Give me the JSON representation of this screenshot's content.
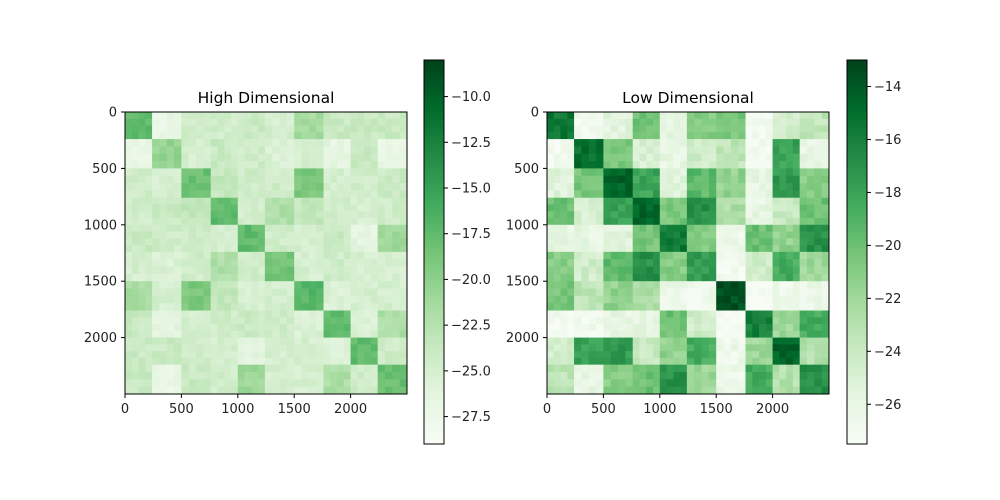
{
  "chart_data": [
    {
      "type": "heatmap",
      "title": "High Dimensional",
      "xlabel": "",
      "ylabel": "",
      "n": 2500,
      "x_ticks": [
        0,
        500,
        1000,
        1500,
        2000
      ],
      "y_ticks": [
        0,
        500,
        1000,
        1500,
        2000
      ],
      "cmap": "Greens",
      "colorbar": {
        "range": [
          -29.0,
          -8.0
        ],
        "ticks": [
          -10.0,
          -12.5,
          -15.0,
          -17.5,
          -20.0,
          -22.5,
          -25.0,
          -27.5
        ],
        "tick_labels": [
          "−10.0",
          "−12.5",
          "−15.0",
          "−17.5",
          "−20.0",
          "−22.5",
          "−25.0",
          "−27.5"
        ]
      },
      "block_boundaries": [
        0,
        240,
        500,
        760,
        1000,
        1240,
        1500,
        1760,
        2000,
        2240,
        2500
      ],
      "block_values": [
        [
          -17.5,
          -27.0,
          -24.5,
          -24.5,
          -24.0,
          -25.0,
          -21.5,
          -24.0,
          -24.0,
          -24.0
        ],
        [
          -27.0,
          -20.5,
          -25.0,
          -24.0,
          -24.5,
          -25.5,
          -25.0,
          -26.5,
          -24.0,
          -27.0
        ],
        [
          -24.5,
          -25.0,
          -18.0,
          -23.5,
          -24.5,
          -24.5,
          -19.0,
          -25.0,
          -24.5,
          -24.0
        ],
        [
          -24.5,
          -24.0,
          -23.5,
          -17.5,
          -25.0,
          -22.0,
          -23.5,
          -24.5,
          -25.0,
          -24.5
        ],
        [
          -24.0,
          -24.5,
          -24.5,
          -25.0,
          -17.5,
          -24.5,
          -25.0,
          -24.0,
          -26.5,
          -21.0
        ],
        [
          -25.0,
          -25.5,
          -24.5,
          -22.0,
          -24.5,
          -18.5,
          -25.0,
          -24.5,
          -25.0,
          -25.0
        ],
        [
          -21.5,
          -25.0,
          -19.0,
          -23.5,
          -25.0,
          -25.0,
          -17.0,
          -25.5,
          -25.0,
          -25.0
        ],
        [
          -24.0,
          -26.5,
          -25.0,
          -24.5,
          -24.0,
          -24.5,
          -25.5,
          -17.5,
          -25.5,
          -22.0
        ],
        [
          -24.0,
          -24.0,
          -24.5,
          -25.0,
          -26.5,
          -25.0,
          -25.0,
          -25.5,
          -17.5,
          -24.5
        ],
        [
          -24.0,
          -27.0,
          -24.0,
          -24.5,
          -21.0,
          -25.0,
          -25.0,
          -22.0,
          -24.5,
          -18.0
        ]
      ]
    },
    {
      "type": "heatmap",
      "title": "Low Dimensional",
      "xlabel": "",
      "ylabel": "",
      "n": 2500,
      "x_ticks": [
        0,
        500,
        1000,
        1500,
        2000
      ],
      "y_ticks": [
        0,
        500,
        1000,
        1500,
        2000
      ],
      "cmap": "Greens",
      "colorbar": {
        "range": [
          -27.5,
          -13.0
        ],
        "ticks": [
          -14,
          -16,
          -18,
          -20,
          -22,
          -24,
          -26
        ],
        "tick_labels": [
          "−14",
          "−16",
          "−18",
          "−20",
          "−22",
          "−24",
          "−26"
        ]
      },
      "block_boundaries": [
        0,
        240,
        500,
        760,
        1000,
        1240,
        1500,
        1760,
        2000,
        2240,
        2500
      ],
      "block_values": [
        [
          -15.5,
          -27.0,
          -25.5,
          -20.0,
          -26.0,
          -21.0,
          -20.5,
          -27.0,
          -24.5,
          -23.5
        ],
        [
          -27.0,
          -15.0,
          -20.5,
          -25.0,
          -26.0,
          -24.5,
          -23.5,
          -27.0,
          -18.0,
          -26.0
        ],
        [
          -25.5,
          -20.5,
          -14.5,
          -18.0,
          -25.5,
          -19.5,
          -21.5,
          -26.0,
          -17.5,
          -21.0
        ],
        [
          -20.0,
          -25.0,
          -18.0,
          -14.5,
          -20.5,
          -17.0,
          -22.5,
          -26.0,
          -24.0,
          -20.0
        ],
        [
          -26.0,
          -26.0,
          -25.5,
          -20.5,
          -15.5,
          -21.0,
          -26.5,
          -20.0,
          -21.5,
          -17.0
        ],
        [
          -21.0,
          -24.5,
          -19.5,
          -17.0,
          -21.0,
          -17.5,
          -27.0,
          -24.5,
          -18.5,
          -22.0
        ],
        [
          -20.5,
          -23.5,
          -21.5,
          -22.5,
          -26.5,
          -27.0,
          -13.5,
          -27.5,
          -26.5,
          -26.5
        ],
        [
          -27.0,
          -27.0,
          -26.0,
          -26.0,
          -20.0,
          -24.5,
          -27.5,
          -16.0,
          -22.0,
          -18.5
        ],
        [
          -24.5,
          -18.0,
          -17.5,
          -24.0,
          -21.5,
          -18.5,
          -26.5,
          -22.0,
          -14.5,
          -23.0
        ],
        [
          -23.5,
          -26.0,
          -21.0,
          -20.0,
          -17.0,
          -22.0,
          -26.5,
          -18.5,
          -23.0,
          -17.0
        ]
      ]
    }
  ]
}
